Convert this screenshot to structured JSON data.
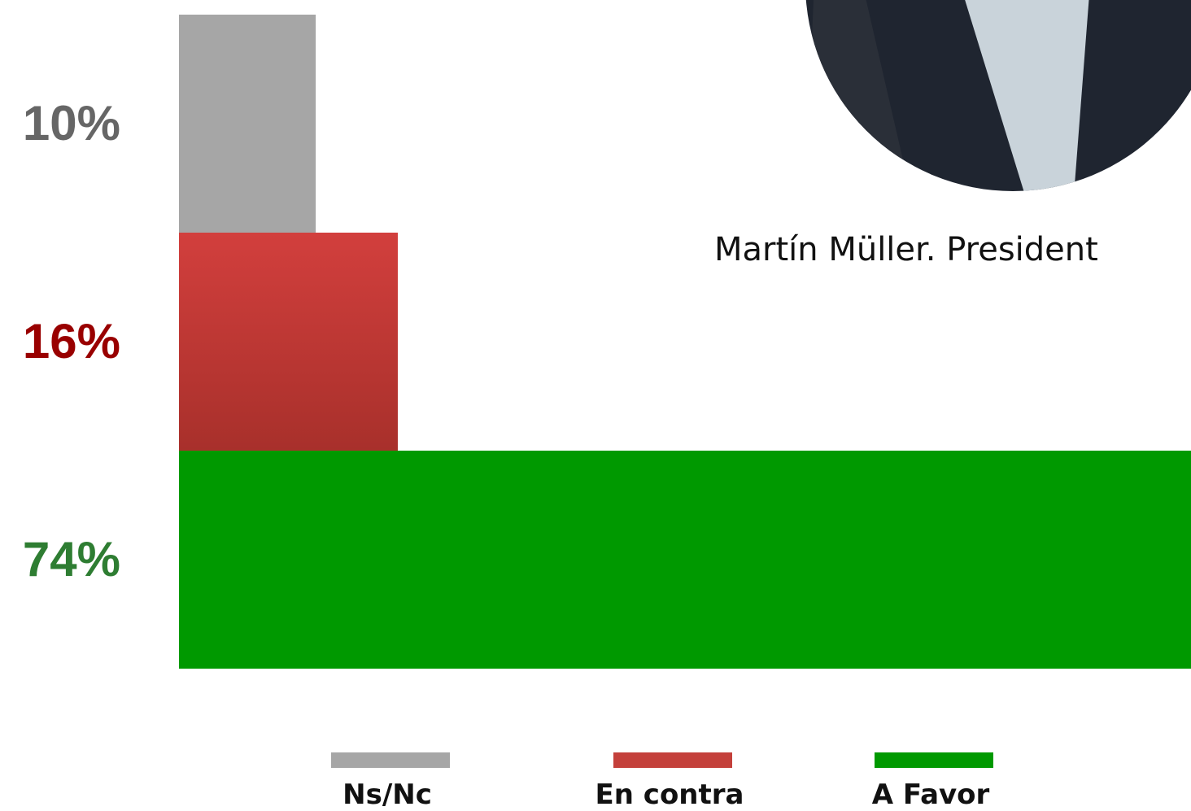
{
  "chart_data": {
    "type": "bar",
    "orientation": "horizontal",
    "caption": "Martín Müller. President",
    "categories": [
      "Ns/Nc",
      "En contra",
      "A Favor"
    ],
    "values": [
      10,
      16,
      74
    ],
    "value_labels": [
      "10%",
      "16%",
      "74%"
    ],
    "colors": [
      "#a6a6a6",
      "#c4403b",
      "#009900"
    ],
    "label_colors": [
      "#666666",
      "#990000",
      "#2e7d32"
    ],
    "xlim": [
      0,
      74
    ]
  }
}
